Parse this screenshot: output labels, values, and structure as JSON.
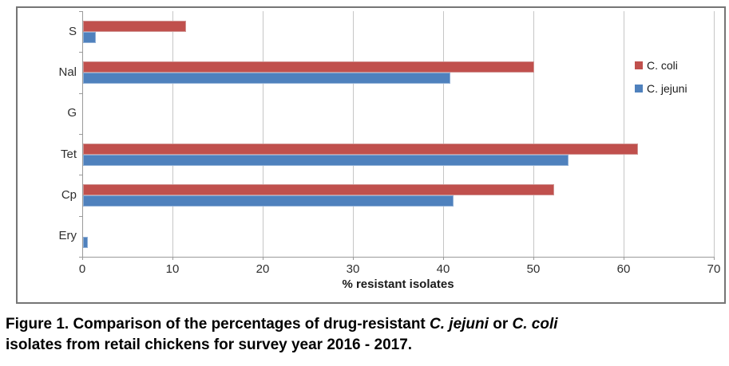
{
  "chart_data": {
    "type": "bar",
    "orientation": "horizontal",
    "title": "",
    "xlabel": "% resistant isolates",
    "ylabel": "",
    "xlim": [
      0,
      70
    ],
    "xticks": [
      0,
      10,
      20,
      30,
      40,
      50,
      60,
      70
    ],
    "grid": "vertical",
    "legend_position": "inside-right",
    "categories": [
      "S",
      "Nal",
      "G",
      "Tet",
      "Cp",
      "Ery"
    ],
    "series": [
      {
        "name": "C. coli",
        "color": "#c0504d",
        "values": [
          11.4,
          50.0,
          0,
          61.5,
          52.2,
          0
        ]
      },
      {
        "name": "C. jejuni",
        "color": "#4f81bd",
        "values": [
          1.4,
          40.7,
          0,
          53.8,
          41.1,
          0.5
        ]
      }
    ]
  },
  "legend": {
    "items": [
      {
        "label": "C. coli",
        "color": "#c0504d"
      },
      {
        "label": "C. jejuni",
        "color": "#4f81bd"
      }
    ]
  },
  "axis": {
    "x_title": "% resistant isolates"
  },
  "caption": {
    "lines": [
      {
        "segments": [
          {
            "text": "Figure 1. Comparison of the percentages of drug-resistant ",
            "italic": false
          },
          {
            "text": "C. jejuni",
            "italic": true
          },
          {
            "text": " or ",
            "italic": false
          },
          {
            "text": "C. coli",
            "italic": true
          }
        ]
      },
      {
        "segments": [
          {
            "text": "isolates from retail chickens for survey year 2016 - 2017.",
            "italic": false
          }
        ]
      }
    ]
  },
  "colors": {
    "c_coli": "#c0504d",
    "c_jejuni": "#4f81bd",
    "gridline": "#c6c6c6",
    "axis": "#9a9a9a",
    "figure_border": "#757575"
  }
}
